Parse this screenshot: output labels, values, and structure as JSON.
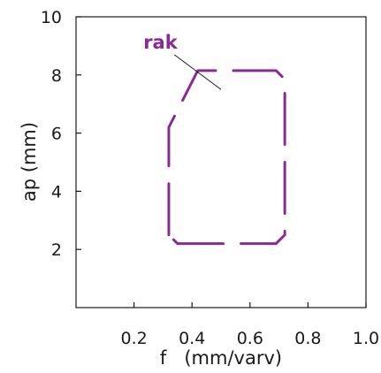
{
  "chart_data": {
    "type": "line",
    "title": "",
    "xlabel": "f   (mm/varv)",
    "ylabel": "ap (mm)",
    "xlim": [
      0.0,
      1.0
    ],
    "ylim": [
      0,
      10
    ],
    "xticks": [
      0.2,
      0.4,
      0.6,
      0.8,
      1.0
    ],
    "xtick_labels": [
      "0.2",
      "0.4",
      "0.6",
      "0.8",
      "1.0"
    ],
    "yticks": [
      2,
      4,
      6,
      8,
      10
    ],
    "ytick_labels": [
      "2",
      "4",
      "6",
      "8",
      "10"
    ],
    "grid": false,
    "series": [
      {
        "name": "rak",
        "color": "#8a2a96",
        "line_style": "dashed",
        "closed": true,
        "x": [
          0.32,
          0.32,
          0.42,
          0.69,
          0.72,
          0.72,
          0.69,
          0.35,
          0.32
        ],
        "y": [
          2.5,
          6.2,
          8.15,
          8.15,
          7.85,
          2.5,
          2.2,
          2.2,
          2.5
        ]
      }
    ],
    "annotations": [
      {
        "text": "rak",
        "x": 0.4,
        "y": 9.0,
        "points_to": {
          "x": 0.5,
          "y": 7.5
        }
      }
    ]
  }
}
